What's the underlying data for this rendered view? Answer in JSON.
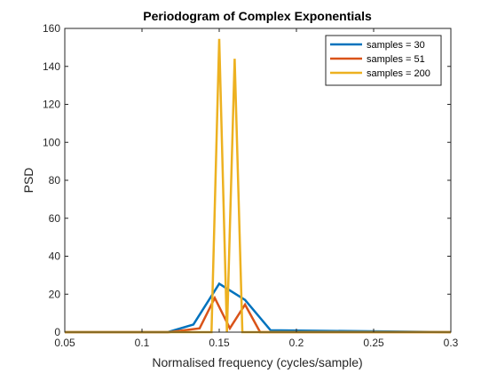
{
  "chart_data": {
    "type": "line",
    "title": "Periodogram of Complex Exponentials",
    "xlabel": "Normalised frequency (cycles/sample)",
    "ylabel": "PSD",
    "xlim": [
      0.05,
      0.3
    ],
    "ylim": [
      0,
      160
    ],
    "xticks": [
      "0.05",
      "0.1",
      "0.15",
      "0.2",
      "0.25",
      "0.3"
    ],
    "yticks": [
      "0",
      "20",
      "40",
      "60",
      "80",
      "100",
      "120",
      "140",
      "160"
    ],
    "grid": false,
    "legend_position": "top-right",
    "series": [
      {
        "name": "samples = 30",
        "color": "#0072BD",
        "x": [
          0.05,
          0.1167,
          0.1333,
          0.15,
          0.1667,
          0.1833,
          0.3
        ],
        "y": [
          0,
          0,
          4,
          25.5,
          17,
          1,
          0
        ]
      },
      {
        "name": "samples = 51",
        "color": "#D95319",
        "x": [
          0.05,
          0.1176,
          0.1373,
          0.1471,
          0.1569,
          0.1667,
          0.1765,
          0.3
        ],
        "y": [
          0,
          0,
          2,
          18,
          2,
          14.5,
          0,
          0
        ]
      },
      {
        "name": "samples = 200",
        "color": "#EDB120",
        "x": [
          0.05,
          0.145,
          0.15,
          0.155,
          0.16,
          0.165,
          0.3
        ],
        "y": [
          0,
          0,
          154.5,
          0,
          144,
          0,
          0
        ]
      }
    ]
  }
}
